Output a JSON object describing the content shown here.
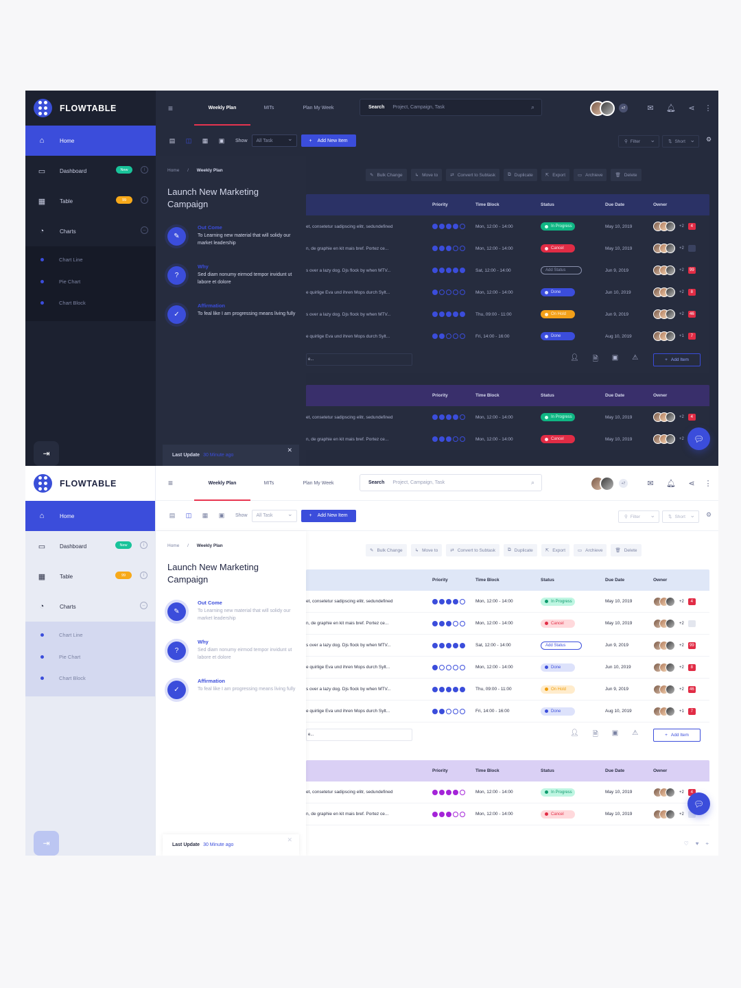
{
  "app": {
    "name": "FLOWTABLE"
  },
  "sidebar": {
    "items": [
      {
        "label": "Home",
        "icon": "home-icon"
      },
      {
        "label": "Dashboard",
        "icon": "monitor-icon",
        "badge": "New"
      },
      {
        "label": "Table",
        "icon": "table-icon",
        "badge": "99"
      },
      {
        "label": "Charts",
        "icon": "pie-chart-icon"
      }
    ],
    "sub_items": [
      "Chart Line",
      "Pie Chart",
      "Chart Block"
    ]
  },
  "header": {
    "tabs": [
      "Weekly Plan",
      "MITs",
      "Plan My Week"
    ],
    "search_label": "Search",
    "search_placeholder": "Project, Campaign, Task",
    "extra_users": "+7"
  },
  "toolbar": {
    "show_label": "Show",
    "show_value": "All Task",
    "add_new_item": "Add New Item",
    "filter": "Filter",
    "sort": "Short"
  },
  "panel": {
    "breadcrumb_home": "Home",
    "breadcrumb_sep": "/",
    "breadcrumb_current": "Weekly Plan",
    "title": "Launch New Marketing Campaign",
    "items": [
      {
        "heading": "Out Come",
        "text": "To Learning new material that will solidy our market leadership"
      },
      {
        "heading": "Why",
        "text": "Sed diam nonumy eirmod tempor invidunt ut labore et dolore"
      },
      {
        "heading": "Affirmation",
        "text": "To feal like I am progressing means living fully"
      }
    ],
    "last_update_label": "Last Update",
    "last_update_value": "30 Minute ago"
  },
  "actions": [
    "Bulk Change",
    "Move to",
    "Convert to Subtask",
    "Duplicate",
    "Export",
    "Archieve",
    "Delete"
  ],
  "table": {
    "columns": [
      "Priority",
      "Time Block",
      "Status",
      "Due Date",
      "Owner"
    ],
    "rows": [
      {
        "task": "et, consetetur sadipscing elitr, sedundefined",
        "priority": 4,
        "time": "Mon, 12:00 - 14:00",
        "status": "In Progress",
        "due": "May 10, 2019",
        "owner_extra": "+2",
        "flag": "4"
      },
      {
        "task": "n, de graphie en kit mais bref. Portez ce...",
        "priority": 3,
        "time": "Mon, 12:00 - 14:00",
        "status": "Cancel",
        "due": "May 10, 2019",
        "owner_extra": "+2",
        "flag": ""
      },
      {
        "task": "s over a lazy dog. Djs flock by when MTV...",
        "priority": 5,
        "time": "Sat, 12:00 - 14:00",
        "status": "Add Status",
        "due": "Jun 9, 2019",
        "owner_extra": "+2",
        "flag": "99"
      },
      {
        "task": "e quirlige Eva und ihren Mops durch Sylt...",
        "priority": 1,
        "time": "Mon, 12:00 - 14:00",
        "status": "Done",
        "due": "Jun 10, 2019",
        "owner_extra": "+2",
        "flag": "8"
      },
      {
        "task": "s over a lazy dog. Djs flock by when MTV...",
        "priority": 5,
        "time": "Thu, 09:00 - 11:00",
        "status": "On Hold",
        "due": "Jun 9, 2019",
        "owner_extra": "+2",
        "flag": "46"
      },
      {
        "task": "e quirlige Eva und ihren Mops durch Sylt...",
        "priority": 2,
        "time": "Fri, 14:00 - 16:00",
        "status": "Done",
        "due": "Aug 10, 2019",
        "owner_extra": "+1",
        "flag": "7"
      }
    ],
    "input_placeholder": "e...",
    "add_item": "Add Item"
  },
  "table2": {
    "rows": [
      {
        "task": "et, consetetur sadipscing elitr, sedundefined",
        "priority": 4,
        "time": "Mon, 12:00 - 14:00",
        "status": "In Progress",
        "due": "May 10, 2019",
        "owner_extra": "+2",
        "flag": "4"
      },
      {
        "task": "n, de graphie en kit mais bref. Portez ce...",
        "priority": 3,
        "time": "Mon, 12:00 - 14:00",
        "status": "Cancel",
        "due": "May 10, 2019",
        "owner_extra": "+2",
        "flag": ""
      }
    ]
  },
  "colors": {
    "accent": "#3b4ddb",
    "alert": "#e8344f",
    "purple": "#a424d8",
    "dark_bg": "#252b3d",
    "light_bg": "#ffffff"
  }
}
